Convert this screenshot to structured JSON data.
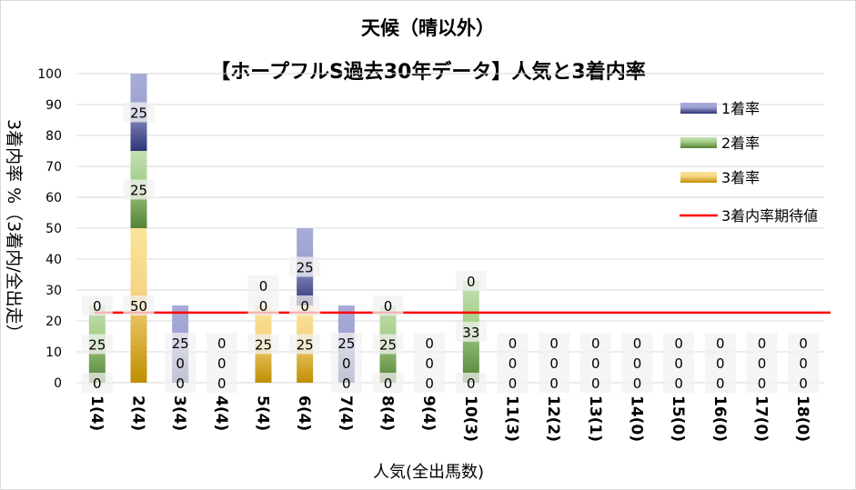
{
  "chart_data": {
    "type": "bar",
    "stacked": true,
    "title": "天候（晴以外）",
    "subtitle": "【ホープフルS過去30年データ】人気と3着内率",
    "xlabel": "人気(全出馬数)",
    "ylabel": "3着内率 %（3着内/全出走）",
    "ylim": [
      0,
      100
    ],
    "yticks": [
      0,
      10,
      20,
      30,
      40,
      50,
      60,
      70,
      80,
      90,
      100
    ],
    "categories": [
      "1(4)",
      "2(4)",
      "3(4)",
      "4(4)",
      "5(4)",
      "6(4)",
      "7(4)",
      "8(4)",
      "9(4)",
      "10(3)",
      "11(3)",
      "12(2)",
      "13(1)",
      "14(0)",
      "15(0)",
      "16(0)",
      "17(0)",
      "18(0)"
    ],
    "series": [
      {
        "name": "3着率",
        "color": "#c09010",
        "values": [
          0,
          50,
          0,
          0,
          25,
          25,
          0,
          0,
          0,
          0,
          0,
          0,
          0,
          0,
          0,
          0,
          0,
          0
        ]
      },
      {
        "name": "2着率",
        "color": "#5b8a3a",
        "values": [
          25,
          25,
          0,
          0,
          0,
          0,
          0,
          25,
          0,
          33,
          0,
          0,
          0,
          0,
          0,
          0,
          0,
          0
        ]
      },
      {
        "name": "1着率",
        "color": "#3a438f",
        "values": [
          0,
          25,
          25,
          0,
          0,
          25,
          25,
          0,
          0,
          0,
          0,
          0,
          0,
          0,
          0,
          0,
          0,
          0
        ]
      }
    ],
    "legend_order": [
      "1着率",
      "2着率",
      "3着率",
      "3着内率期待値"
    ],
    "expected_line": {
      "name": "3着内率期待値",
      "value": 22.7,
      "color": "#ff0000"
    },
    "legend_position": "right",
    "grid": true
  }
}
